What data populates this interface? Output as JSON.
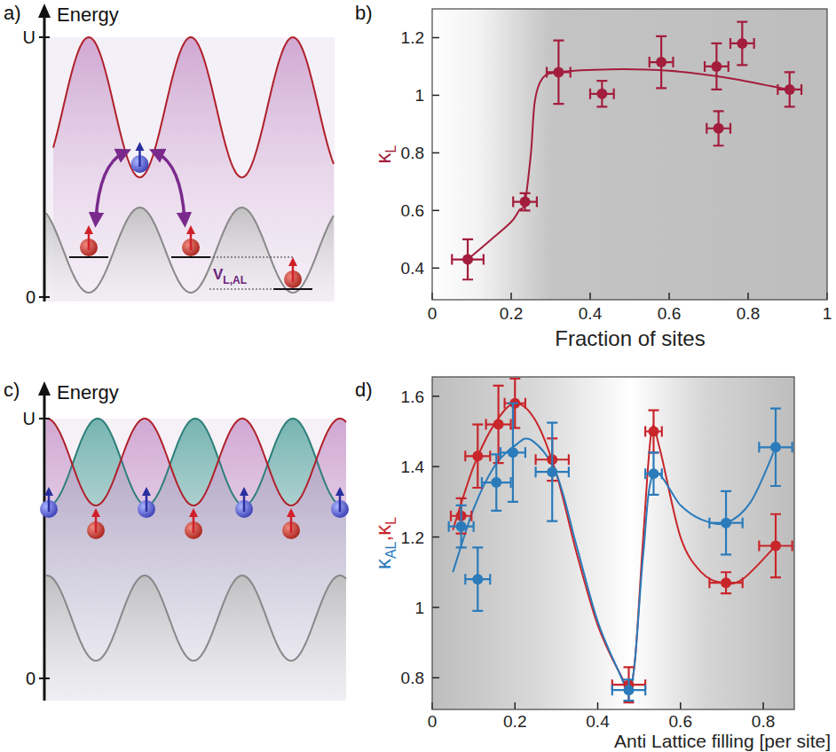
{
  "panel_labels": [
    "a)",
    "b)",
    "c)",
    "d)"
  ],
  "diagrams": {
    "a": {
      "energy_label": "Energy",
      "u_label": "U",
      "zero_label": "0",
      "potential_label": {
        "text": "V",
        "sub": "L,AL"
      }
    },
    "c": {
      "energy_label": "Energy",
      "u_label": "U",
      "zero_label": "0"
    }
  },
  "chart_data": [
    {
      "type": "scatter",
      "xlabel": "Fraction of sites",
      "ylabel": [
        {
          "text": "κ",
          "sub": "L",
          "color": "#a31d3c"
        }
      ],
      "xlim": [
        0,
        1
      ],
      "ylim": [
        0.29,
        1.3
      ],
      "xticks": [
        0,
        0.2,
        0.4,
        0.6,
        0.8,
        1
      ],
      "yticks": [
        0.4,
        0.6,
        0.8,
        1,
        1.2
      ],
      "series": [
        {
          "type": "scatter",
          "color": "#a31d3c",
          "marker": "circle",
          "x": [
            0.09,
            0.235,
            0.32,
            0.43,
            0.58,
            0.72,
            0.725,
            0.785,
            0.905
          ],
          "y": [
            0.43,
            0.63,
            1.08,
            1.005,
            1.115,
            1.1,
            0.885,
            1.18,
            1.02
          ],
          "xerr": [
            0.04,
            0.03,
            0.03,
            0.03,
            0.03,
            0.03,
            0.03,
            0.03,
            0.03
          ],
          "yerr": [
            0.07,
            0.03,
            0.11,
            0.045,
            0.09,
            0.08,
            0.06,
            0.075,
            0.06
          ]
        },
        {
          "type": "line",
          "color": "#a31d3c",
          "line_style": "solid",
          "x": [
            0.09,
            0.15,
            0.2,
            0.22,
            0.235,
            0.25,
            0.26,
            0.28,
            0.32,
            0.45,
            0.6,
            0.75,
            0.9
          ],
          "y": [
            0.43,
            0.5,
            0.56,
            0.6,
            0.63,
            0.8,
            0.98,
            1.06,
            1.08,
            1.09,
            1.085,
            1.06,
            1.02
          ]
        }
      ]
    },
    {
      "type": "scatter",
      "xlabel": "Anti Lattice filling [per site]",
      "ylabel": [
        {
          "text": "κ",
          "sub": "AL",
          "color": "#2b7bba"
        },
        {
          "text": ",κ",
          "sub": "L",
          "color": "#c8262b"
        }
      ],
      "xlim": [
        0,
        0.875
      ],
      "ylim": [
        0.71,
        1.655
      ],
      "xticks": [
        0,
        0.2,
        0.4,
        0.6,
        0.8
      ],
      "yticks": [
        0.8,
        1,
        1.2,
        1.4,
        1.6
      ],
      "series": [
        {
          "type": "scatter",
          "color": "#c8262b",
          "marker": "circle",
          "x": [
            0.07,
            0.11,
            0.16,
            0.2,
            0.29,
            0.475,
            0.535,
            0.71,
            0.83
          ],
          "y": [
            1.26,
            1.43,
            1.52,
            1.58,
            1.42,
            0.78,
            1.5,
            1.07,
            1.175
          ],
          "xerr": [
            0.025,
            0.03,
            0.03,
            0.025,
            0.04,
            0.04,
            0.02,
            0.04,
            0.04
          ],
          "yerr": [
            0.05,
            0.09,
            0.11,
            0.07,
            0.06,
            0.05,
            0.06,
            0.03,
            0.09
          ]
        },
        {
          "type": "scatter",
          "color": "#2b7bba",
          "marker": "circle",
          "x": [
            0.07,
            0.11,
            0.155,
            0.195,
            0.29,
            0.475,
            0.535,
            0.71,
            0.83
          ],
          "y": [
            1.23,
            1.08,
            1.355,
            1.44,
            1.385,
            0.765,
            1.38,
            1.24,
            1.455
          ],
          "xerr": [
            0.03,
            0.03,
            0.035,
            0.03,
            0.04,
            0.04,
            0.02,
            0.04,
            0.04
          ],
          "yerr": [
            0.06,
            0.09,
            0.08,
            0.14,
            0.14,
            0.03,
            0.06,
            0.09,
            0.11
          ]
        },
        {
          "type": "line",
          "color": "#c8262b",
          "line_style": "solid",
          "x": [
            0.05,
            0.1,
            0.15,
            0.2,
            0.25,
            0.3,
            0.35,
            0.4,
            0.45,
            0.475,
            0.49,
            0.51,
            0.53,
            0.55,
            0.6,
            0.65,
            0.7,
            0.75,
            0.83
          ],
          "y": [
            1.22,
            1.4,
            1.52,
            1.58,
            1.53,
            1.38,
            1.15,
            0.95,
            0.82,
            0.78,
            0.85,
            1.2,
            1.5,
            1.45,
            1.2,
            1.1,
            1.07,
            1.08,
            1.175
          ]
        },
        {
          "type": "line",
          "color": "#2b7bba",
          "line_style": "solid",
          "x": [
            0.05,
            0.1,
            0.15,
            0.2,
            0.24,
            0.3,
            0.35,
            0.4,
            0.45,
            0.475,
            0.49,
            0.51,
            0.535,
            0.6,
            0.65,
            0.71,
            0.77,
            0.83
          ],
          "y": [
            1.1,
            1.28,
            1.4,
            1.46,
            1.475,
            1.38,
            1.17,
            0.96,
            0.82,
            0.765,
            0.85,
            1.15,
            1.38,
            1.29,
            1.25,
            1.24,
            1.3,
            1.455
          ]
        }
      ]
    }
  ]
}
